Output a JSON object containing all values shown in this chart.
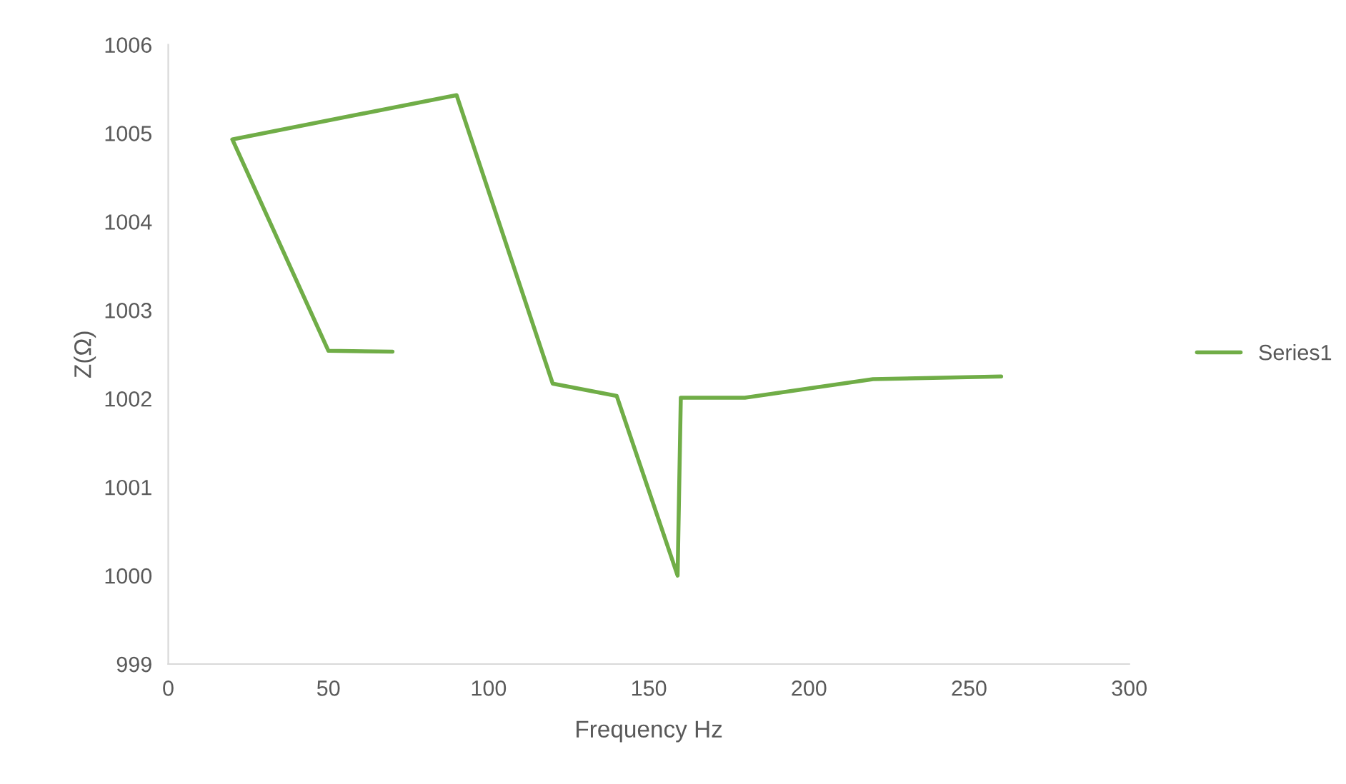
{
  "chart_data": {
    "type": "line",
    "xlabel": "Frequency Hz",
    "ylabel": "Z(Ω)",
    "x": [
      70,
      50,
      20,
      90,
      120,
      140,
      159,
      160,
      180,
      220,
      260
    ],
    "series": [
      {
        "name": "Series1",
        "color": "#70ad47",
        "values": [
          1002.53,
          1002.54,
          1004.93,
          1005.43,
          1002.17,
          1002.03,
          1000.0,
          1002.01,
          1002.01,
          1002.22,
          1002.25
        ]
      }
    ],
    "xlim": [
      0,
      300
    ],
    "xticks": [
      0,
      50,
      100,
      150,
      200,
      250,
      300
    ],
    "ylim": [
      999,
      1006
    ],
    "yticks": [
      999,
      1000,
      1001,
      1002,
      1003,
      1004,
      1005,
      1006
    ],
    "grid": false,
    "legend": "right",
    "marker": "none",
    "line_style": "solid"
  }
}
